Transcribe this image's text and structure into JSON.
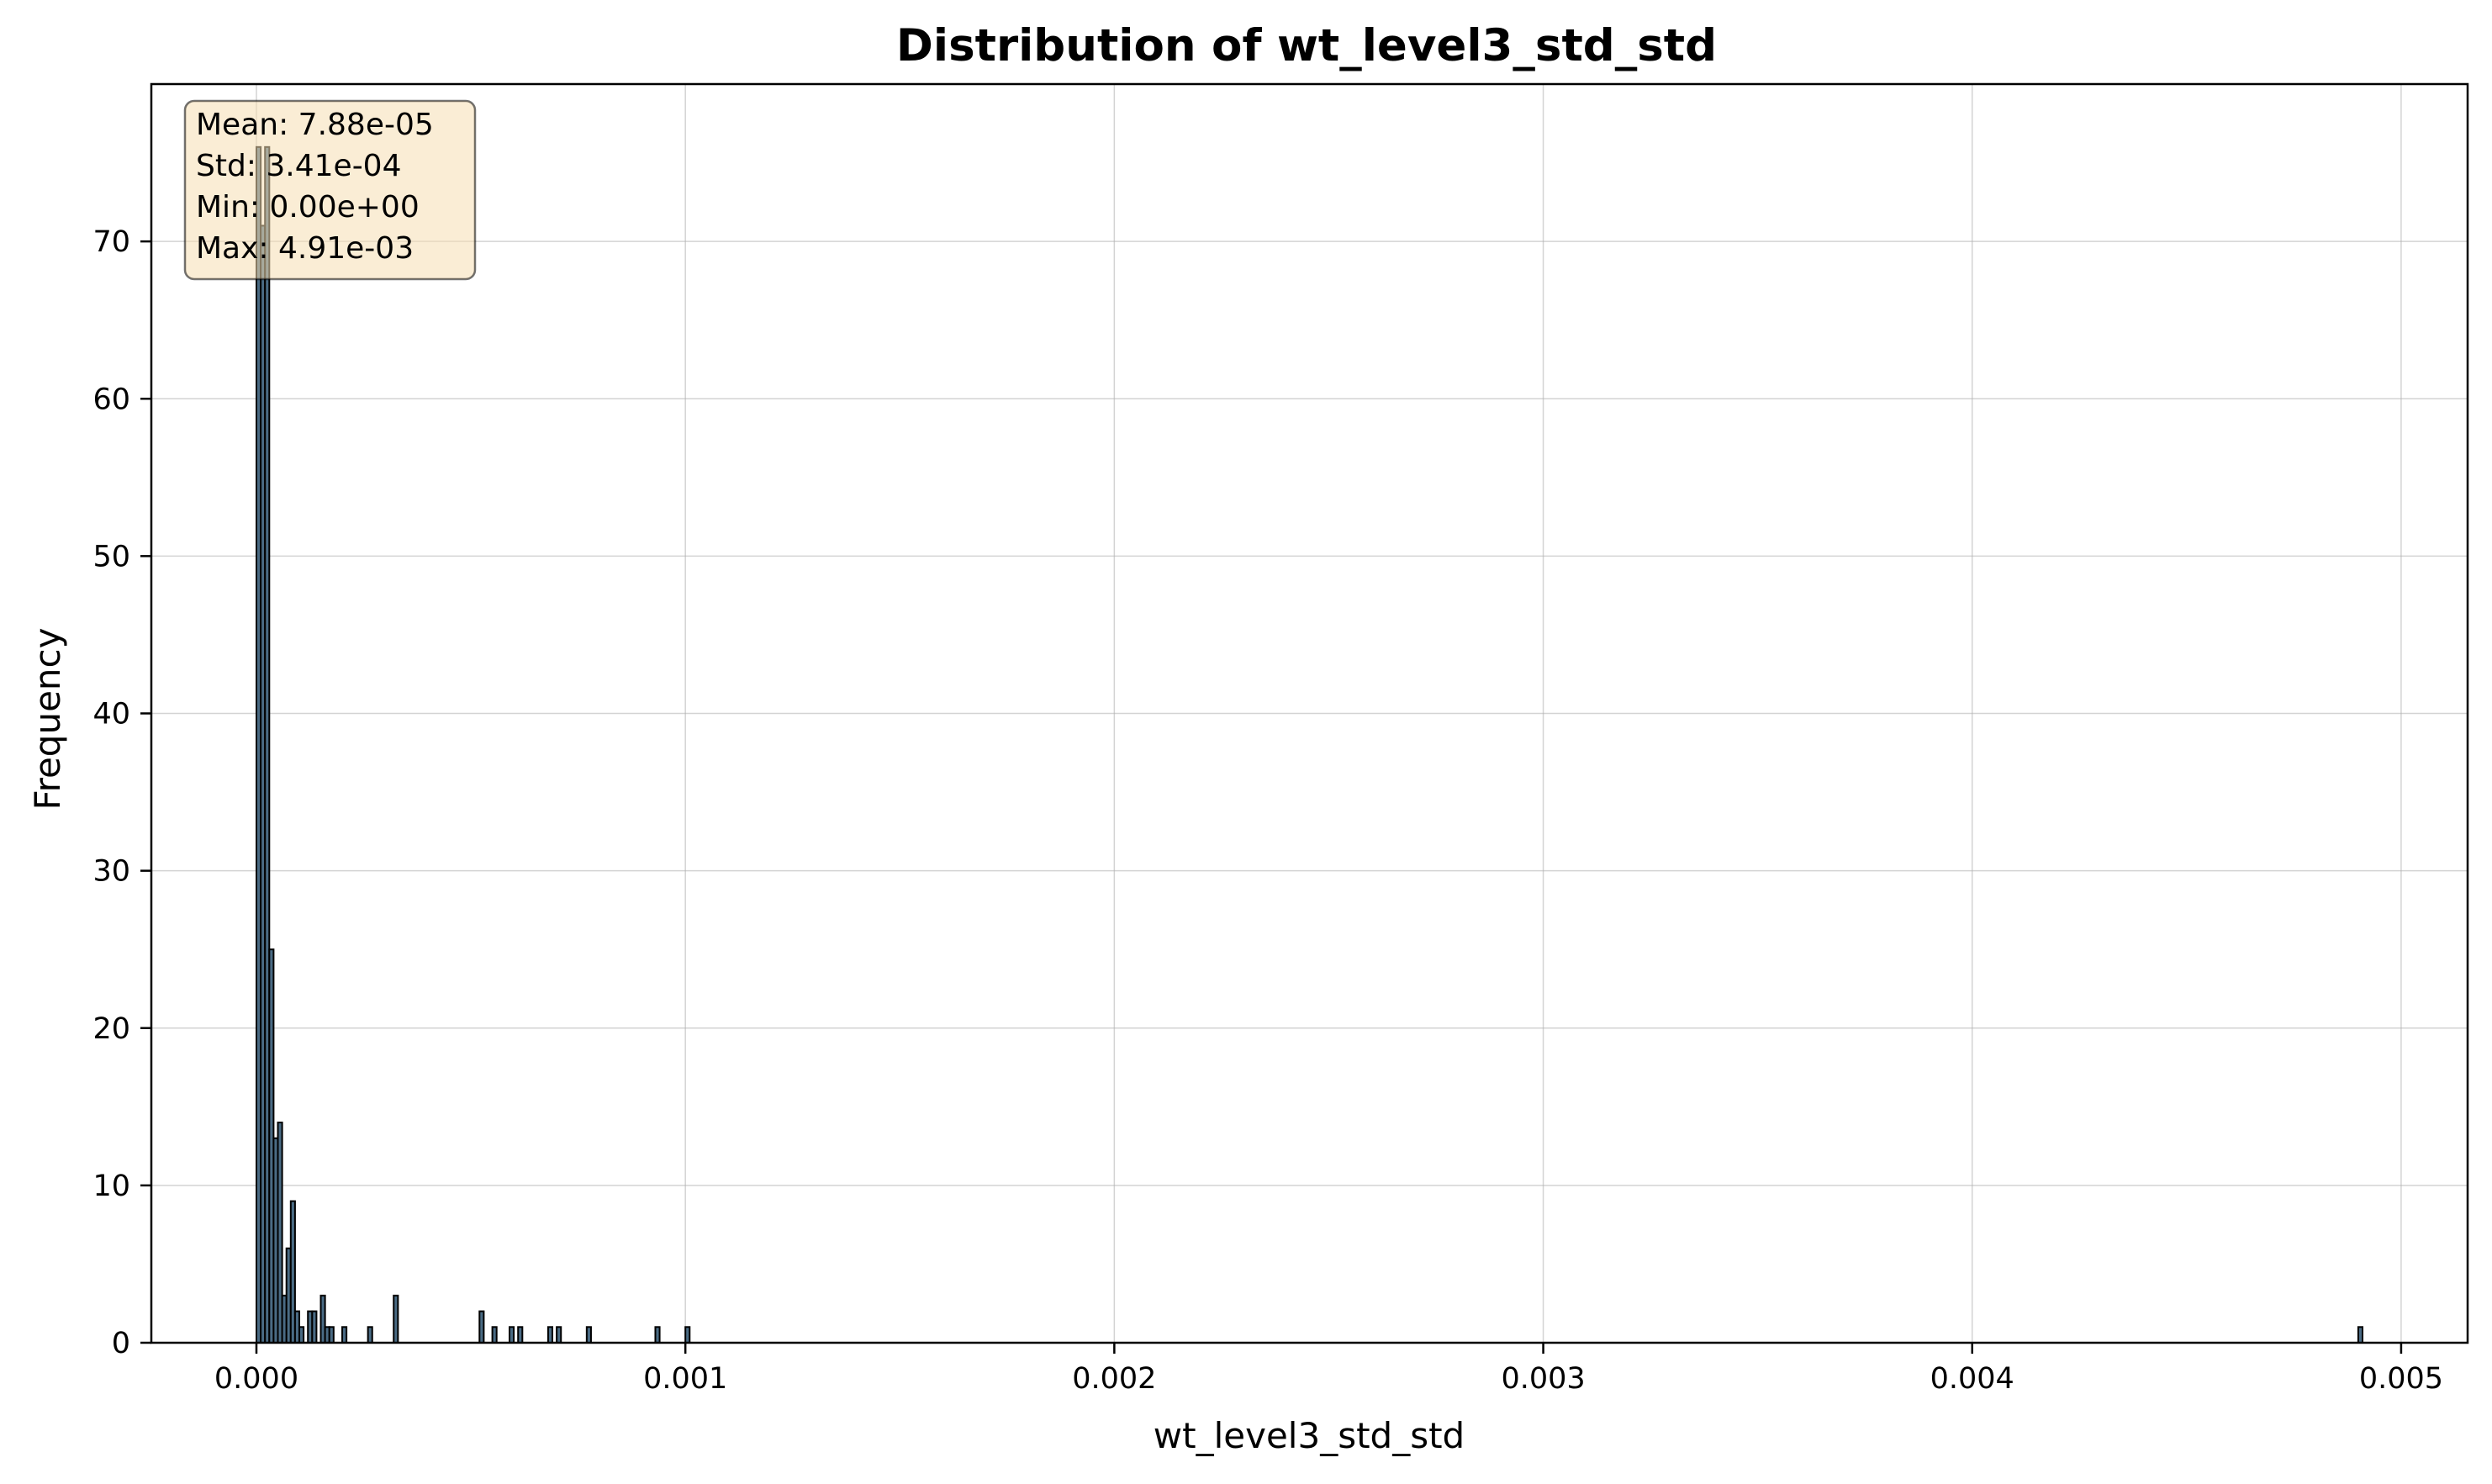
{
  "chart_data": {
    "type": "bar",
    "title": "Distribution of wt_level3_std_std",
    "xlabel": "wt_level3_std_std",
    "ylabel": "Frequency",
    "xlim": [
      -0.000245,
      0.005155
    ],
    "ylim": [
      0,
      80
    ],
    "x_ticks": [
      0.0,
      0.001,
      0.002,
      0.003,
      0.004,
      0.005
    ],
    "x_tick_labels": [
      "0.000",
      "0.001",
      "0.002",
      "0.003",
      "0.004",
      "0.005"
    ],
    "y_ticks": [
      0,
      10,
      20,
      30,
      40,
      50,
      60,
      70
    ],
    "y_tick_labels": [
      "0",
      "10",
      "20",
      "30",
      "40",
      "50",
      "60",
      "70"
    ],
    "grid": true,
    "bar_color": "#4a6b84",
    "bin_width": 1e-05,
    "bins": [
      {
        "x": 0.0,
        "count": 76
      },
      {
        "x": 1e-05,
        "count": 71
      },
      {
        "x": 2e-05,
        "count": 76
      },
      {
        "x": 3e-05,
        "count": 25
      },
      {
        "x": 4e-05,
        "count": 13
      },
      {
        "x": 5e-05,
        "count": 14
      },
      {
        "x": 6e-05,
        "count": 3
      },
      {
        "x": 7e-05,
        "count": 6
      },
      {
        "x": 8e-05,
        "count": 9
      },
      {
        "x": 9e-05,
        "count": 2
      },
      {
        "x": 0.0001,
        "count": 1
      },
      {
        "x": 0.00012,
        "count": 2
      },
      {
        "x": 0.00013,
        "count": 2
      },
      {
        "x": 0.00015,
        "count": 3
      },
      {
        "x": 0.00016,
        "count": 1
      },
      {
        "x": 0.00017,
        "count": 1
      },
      {
        "x": 0.0002,
        "count": 1
      },
      {
        "x": 0.00026,
        "count": 1
      },
      {
        "x": 0.00032,
        "count": 3
      },
      {
        "x": 0.00052,
        "count": 2
      },
      {
        "x": 0.00055,
        "count": 1
      },
      {
        "x": 0.00059,
        "count": 1
      },
      {
        "x": 0.00061,
        "count": 1
      },
      {
        "x": 0.00068,
        "count": 1
      },
      {
        "x": 0.0007,
        "count": 1
      },
      {
        "x": 0.00077,
        "count": 1
      },
      {
        "x": 0.00093,
        "count": 1
      },
      {
        "x": 0.001,
        "count": 1
      },
      {
        "x": 0.0049,
        "count": 1
      }
    ],
    "stats_box": {
      "mean": "Mean: 7.88e-05",
      "std": "Std: 3.41e-04",
      "min": "Min: 0.00e+00",
      "max": "Max: 4.91e-03",
      "placement": "top-left",
      "background": "#f5deb3"
    }
  }
}
